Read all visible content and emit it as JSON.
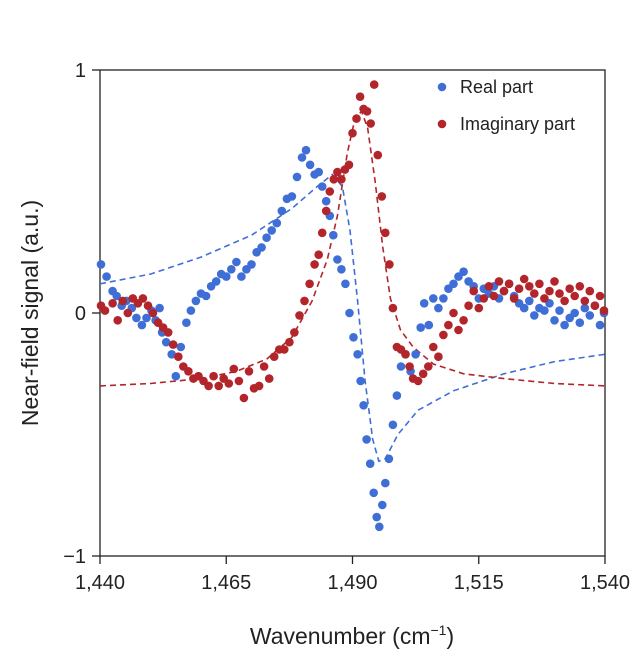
{
  "chart_data": {
    "type": "scatter",
    "title": "",
    "xlabel": "Wavenumber (cm",
    "xlabel_superscript": "−1",
    "xlabel_suffix": ")",
    "ylabel": "Near-field signal (a.u.)",
    "xlim": [
      1440,
      1540
    ],
    "ylim": [
      -1,
      1
    ],
    "xticks": [
      1440,
      1465,
      1490,
      1515,
      1540
    ],
    "xtick_labels": [
      "1,440",
      "1,465",
      "1,490",
      "1,515",
      "1,540"
    ],
    "yticks": [
      -1,
      0,
      1
    ],
    "ytick_labels": [
      "−1",
      "0",
      "1"
    ],
    "grid": false,
    "legend_position": "top-right",
    "series": [
      {
        "name": "Real part",
        "color": "#3f6fd6",
        "points": [
          [
            1440.2,
            0.2
          ],
          [
            1441.3,
            0.15
          ],
          [
            1442.5,
            0.09
          ],
          [
            1443.3,
            0.07
          ],
          [
            1444.3,
            0.03
          ],
          [
            1445.2,
            0.05
          ],
          [
            1446.3,
            0.02
          ],
          [
            1447.2,
            -0.02
          ],
          [
            1448.3,
            -0.05
          ],
          [
            1449.2,
            -0.02
          ],
          [
            1450.2,
            0.01
          ],
          [
            1451.0,
            -0.03
          ],
          [
            1451.8,
            0.02
          ],
          [
            1452.3,
            -0.08
          ],
          [
            1453.1,
            -0.12
          ],
          [
            1454.2,
            -0.17
          ],
          [
            1455.0,
            -0.26
          ],
          [
            1456.0,
            -0.14
          ],
          [
            1457.1,
            -0.04
          ],
          [
            1458.0,
            0.01
          ],
          [
            1459.0,
            0.05
          ],
          [
            1460.0,
            0.08
          ],
          [
            1461.0,
            0.07
          ],
          [
            1462.0,
            0.11
          ],
          [
            1463.0,
            0.13
          ],
          [
            1464.0,
            0.16
          ],
          [
            1465.0,
            0.15
          ],
          [
            1466.0,
            0.18
          ],
          [
            1467.0,
            0.21
          ],
          [
            1468.0,
            0.15
          ],
          [
            1469.0,
            0.18
          ],
          [
            1470.0,
            0.2
          ],
          [
            1471.0,
            0.25
          ],
          [
            1472.0,
            0.27
          ],
          [
            1473.0,
            0.31
          ],
          [
            1474.0,
            0.34
          ],
          [
            1475.0,
            0.37
          ],
          [
            1476.0,
            0.42
          ],
          [
            1477.0,
            0.47
          ],
          [
            1478.0,
            0.48
          ],
          [
            1479.0,
            0.56
          ],
          [
            1480.0,
            0.64
          ],
          [
            1480.8,
            0.67
          ],
          [
            1481.6,
            0.61
          ],
          [
            1482.5,
            0.57
          ],
          [
            1483.3,
            0.58
          ],
          [
            1484.0,
            0.52
          ],
          [
            1484.8,
            0.46
          ],
          [
            1485.5,
            0.4
          ],
          [
            1486.2,
            0.32
          ],
          [
            1487.0,
            0.22
          ],
          [
            1487.8,
            0.18
          ],
          [
            1488.6,
            0.12
          ],
          [
            1489.4,
            0.0
          ],
          [
            1490.2,
            -0.1
          ],
          [
            1491.0,
            -0.17
          ],
          [
            1491.6,
            -0.28
          ],
          [
            1492.2,
            -0.38
          ],
          [
            1492.8,
            -0.52
          ],
          [
            1493.5,
            -0.62
          ],
          [
            1494.2,
            -0.74
          ],
          [
            1494.8,
            -0.84
          ],
          [
            1495.3,
            -0.88
          ],
          [
            1495.9,
            -0.79
          ],
          [
            1496.5,
            -0.7
          ],
          [
            1497.2,
            -0.6
          ],
          [
            1498.0,
            -0.46
          ],
          [
            1498.8,
            -0.34
          ],
          [
            1499.6,
            -0.22
          ],
          [
            1500.5,
            -0.17
          ],
          [
            1501.5,
            -0.24
          ],
          [
            1502.5,
            -0.17
          ],
          [
            1503.5,
            -0.06
          ],
          [
            1504.2,
            0.04
          ],
          [
            1505.1,
            -0.05
          ],
          [
            1506.0,
            0.06
          ],
          [
            1507.0,
            0.02
          ],
          [
            1508.0,
            0.06
          ],
          [
            1509.0,
            0.1
          ],
          [
            1510.0,
            0.12
          ],
          [
            1511.0,
            0.15
          ],
          [
            1512.0,
            0.17
          ],
          [
            1513.0,
            0.13
          ],
          [
            1514.0,
            0.11
          ],
          [
            1515.0,
            0.06
          ],
          [
            1516.0,
            0.1
          ],
          [
            1517.0,
            0.08
          ],
          [
            1518.0,
            0.11
          ],
          [
            1519.0,
            0.06
          ],
          [
            1520.0,
            0.09
          ],
          [
            1521.0,
            0.12
          ],
          [
            1522.0,
            0.07
          ],
          [
            1523.0,
            0.04
          ],
          [
            1524.0,
            0.02
          ],
          [
            1525.0,
            0.05
          ],
          [
            1526.0,
            -0.01
          ],
          [
            1527.0,
            0.02
          ],
          [
            1528.0,
            0.01
          ],
          [
            1529.0,
            0.04
          ],
          [
            1530.0,
            -0.03
          ],
          [
            1531.0,
            0.01
          ],
          [
            1532.0,
            -0.05
          ],
          [
            1533.0,
            -0.02
          ],
          [
            1534.0,
            0.0
          ],
          [
            1535.0,
            -0.04
          ],
          [
            1536.0,
            0.02
          ],
          [
            1537.0,
            -0.01
          ],
          [
            1538.0,
            0.03
          ],
          [
            1539.0,
            -0.05
          ],
          [
            1539.8,
            0.0
          ]
        ],
        "fit_curve": [
          [
            1440,
            0.12
          ],
          [
            1450,
            0.16
          ],
          [
            1460,
            0.23
          ],
          [
            1470,
            0.32
          ],
          [
            1478,
            0.43
          ],
          [
            1483,
            0.52
          ],
          [
            1486,
            0.57
          ],
          [
            1488,
            0.52
          ],
          [
            1489.5,
            0.34
          ],
          [
            1491,
            0.05
          ],
          [
            1492.5,
            -0.28
          ],
          [
            1494,
            -0.52
          ],
          [
            1495.2,
            -0.61
          ],
          [
            1496.5,
            -0.6
          ],
          [
            1499,
            -0.5
          ],
          [
            1503,
            -0.4
          ],
          [
            1510,
            -0.32
          ],
          [
            1520,
            -0.25
          ],
          [
            1530,
            -0.2
          ],
          [
            1540,
            -0.17
          ]
        ]
      },
      {
        "name": "Imaginary part",
        "color": "#b2252a",
        "points": [
          [
            1440.2,
            0.03
          ],
          [
            1441.0,
            0.01
          ],
          [
            1442.5,
            0.04
          ],
          [
            1443.5,
            -0.03
          ],
          [
            1444.5,
            0.05
          ],
          [
            1445.5,
            0.0
          ],
          [
            1446.5,
            0.06
          ],
          [
            1447.5,
            0.04
          ],
          [
            1448.5,
            0.06
          ],
          [
            1449.5,
            0.03
          ],
          [
            1450.5,
            0.0
          ],
          [
            1451.5,
            -0.04
          ],
          [
            1452.5,
            -0.06
          ],
          [
            1453.5,
            -0.08
          ],
          [
            1454.5,
            -0.13
          ],
          [
            1455.5,
            -0.18
          ],
          [
            1456.5,
            -0.22
          ],
          [
            1457.5,
            -0.24
          ],
          [
            1458.5,
            -0.27
          ],
          [
            1459.5,
            -0.26
          ],
          [
            1460.5,
            -0.28
          ],
          [
            1461.5,
            -0.3
          ],
          [
            1462.5,
            -0.26
          ],
          [
            1463.5,
            -0.3
          ],
          [
            1464.5,
            -0.27
          ],
          [
            1465.5,
            -0.29
          ],
          [
            1466.5,
            -0.23
          ],
          [
            1467.5,
            -0.28
          ],
          [
            1468.5,
            -0.35
          ],
          [
            1469.5,
            -0.24
          ],
          [
            1470.5,
            -0.31
          ],
          [
            1471.5,
            -0.3
          ],
          [
            1472.5,
            -0.22
          ],
          [
            1473.5,
            -0.27
          ],
          [
            1474.5,
            -0.18
          ],
          [
            1475.5,
            -0.15
          ],
          [
            1476.5,
            -0.15
          ],
          [
            1477.5,
            -0.12
          ],
          [
            1478.5,
            -0.08
          ],
          [
            1479.5,
            -0.01
          ],
          [
            1480.5,
            0.05
          ],
          [
            1481.5,
            0.12
          ],
          [
            1482.5,
            0.2
          ],
          [
            1483.3,
            0.24
          ],
          [
            1484.0,
            0.33
          ],
          [
            1484.8,
            0.42
          ],
          [
            1485.5,
            0.5
          ],
          [
            1486.3,
            0.55
          ],
          [
            1487.0,
            0.58
          ],
          [
            1487.8,
            0.55
          ],
          [
            1488.5,
            0.59
          ],
          [
            1489.3,
            0.61
          ],
          [
            1490.0,
            0.74
          ],
          [
            1490.8,
            0.8
          ],
          [
            1491.5,
            0.89
          ],
          [
            1492.2,
            0.84
          ],
          [
            1492.9,
            0.83
          ],
          [
            1493.6,
            0.78
          ],
          [
            1494.3,
            0.94
          ],
          [
            1495.0,
            0.65
          ],
          [
            1495.8,
            0.48
          ],
          [
            1496.5,
            0.33
          ],
          [
            1497.3,
            0.2
          ],
          [
            1498.0,
            0.02
          ],
          [
            1498.8,
            -0.14
          ],
          [
            1499.6,
            -0.15
          ],
          [
            1500.5,
            -0.17
          ],
          [
            1501.3,
            -0.22
          ],
          [
            1502.0,
            -0.27
          ],
          [
            1503.0,
            -0.28
          ],
          [
            1504.0,
            -0.25
          ],
          [
            1505.0,
            -0.22
          ],
          [
            1506.0,
            -0.14
          ],
          [
            1507.0,
            -0.18
          ],
          [
            1508.0,
            -0.09
          ],
          [
            1509.0,
            -0.05
          ],
          [
            1510.0,
            0.0
          ],
          [
            1511.0,
            -0.07
          ],
          [
            1512.0,
            -0.03
          ],
          [
            1513.0,
            0.03
          ],
          [
            1514.0,
            0.09
          ],
          [
            1515.0,
            0.02
          ],
          [
            1516.0,
            0.06
          ],
          [
            1517.0,
            0.11
          ],
          [
            1518.0,
            0.07
          ],
          [
            1519.0,
            0.13
          ],
          [
            1520.0,
            0.09
          ],
          [
            1521.0,
            0.12
          ],
          [
            1522.0,
            0.06
          ],
          [
            1523.0,
            0.1
          ],
          [
            1524.0,
            0.14
          ],
          [
            1525.0,
            0.11
          ],
          [
            1526.0,
            0.08
          ],
          [
            1527.0,
            0.12
          ],
          [
            1528.0,
            0.06
          ],
          [
            1529.0,
            0.09
          ],
          [
            1530.0,
            0.13
          ],
          [
            1531.0,
            0.08
          ],
          [
            1532.0,
            0.05
          ],
          [
            1533.0,
            0.1
          ],
          [
            1534.0,
            0.07
          ],
          [
            1535.0,
            0.11
          ],
          [
            1536.0,
            0.05
          ],
          [
            1537.0,
            0.09
          ],
          [
            1538.0,
            0.03
          ],
          [
            1539.0,
            0.07
          ],
          [
            1539.8,
            0.01
          ]
        ],
        "fit_curve": [
          [
            1440,
            -0.3
          ],
          [
            1450,
            -0.29
          ],
          [
            1460,
            -0.27
          ],
          [
            1467,
            -0.24
          ],
          [
            1473,
            -0.19
          ],
          [
            1478,
            -0.1
          ],
          [
            1482,
            0.05
          ],
          [
            1485,
            0.22
          ],
          [
            1487,
            0.4
          ],
          [
            1489,
            0.66
          ],
          [
            1490.5,
            0.8
          ],
          [
            1491.8,
            0.83
          ],
          [
            1493,
            0.76
          ],
          [
            1494.5,
            0.54
          ],
          [
            1496,
            0.27
          ],
          [
            1497.5,
            0.06
          ],
          [
            1499.5,
            -0.07
          ],
          [
            1502,
            -0.14
          ],
          [
            1506,
            -0.21
          ],
          [
            1512,
            -0.25
          ],
          [
            1520,
            -0.27
          ],
          [
            1530,
            -0.29
          ],
          [
            1540,
            -0.3
          ]
        ]
      }
    ]
  }
}
